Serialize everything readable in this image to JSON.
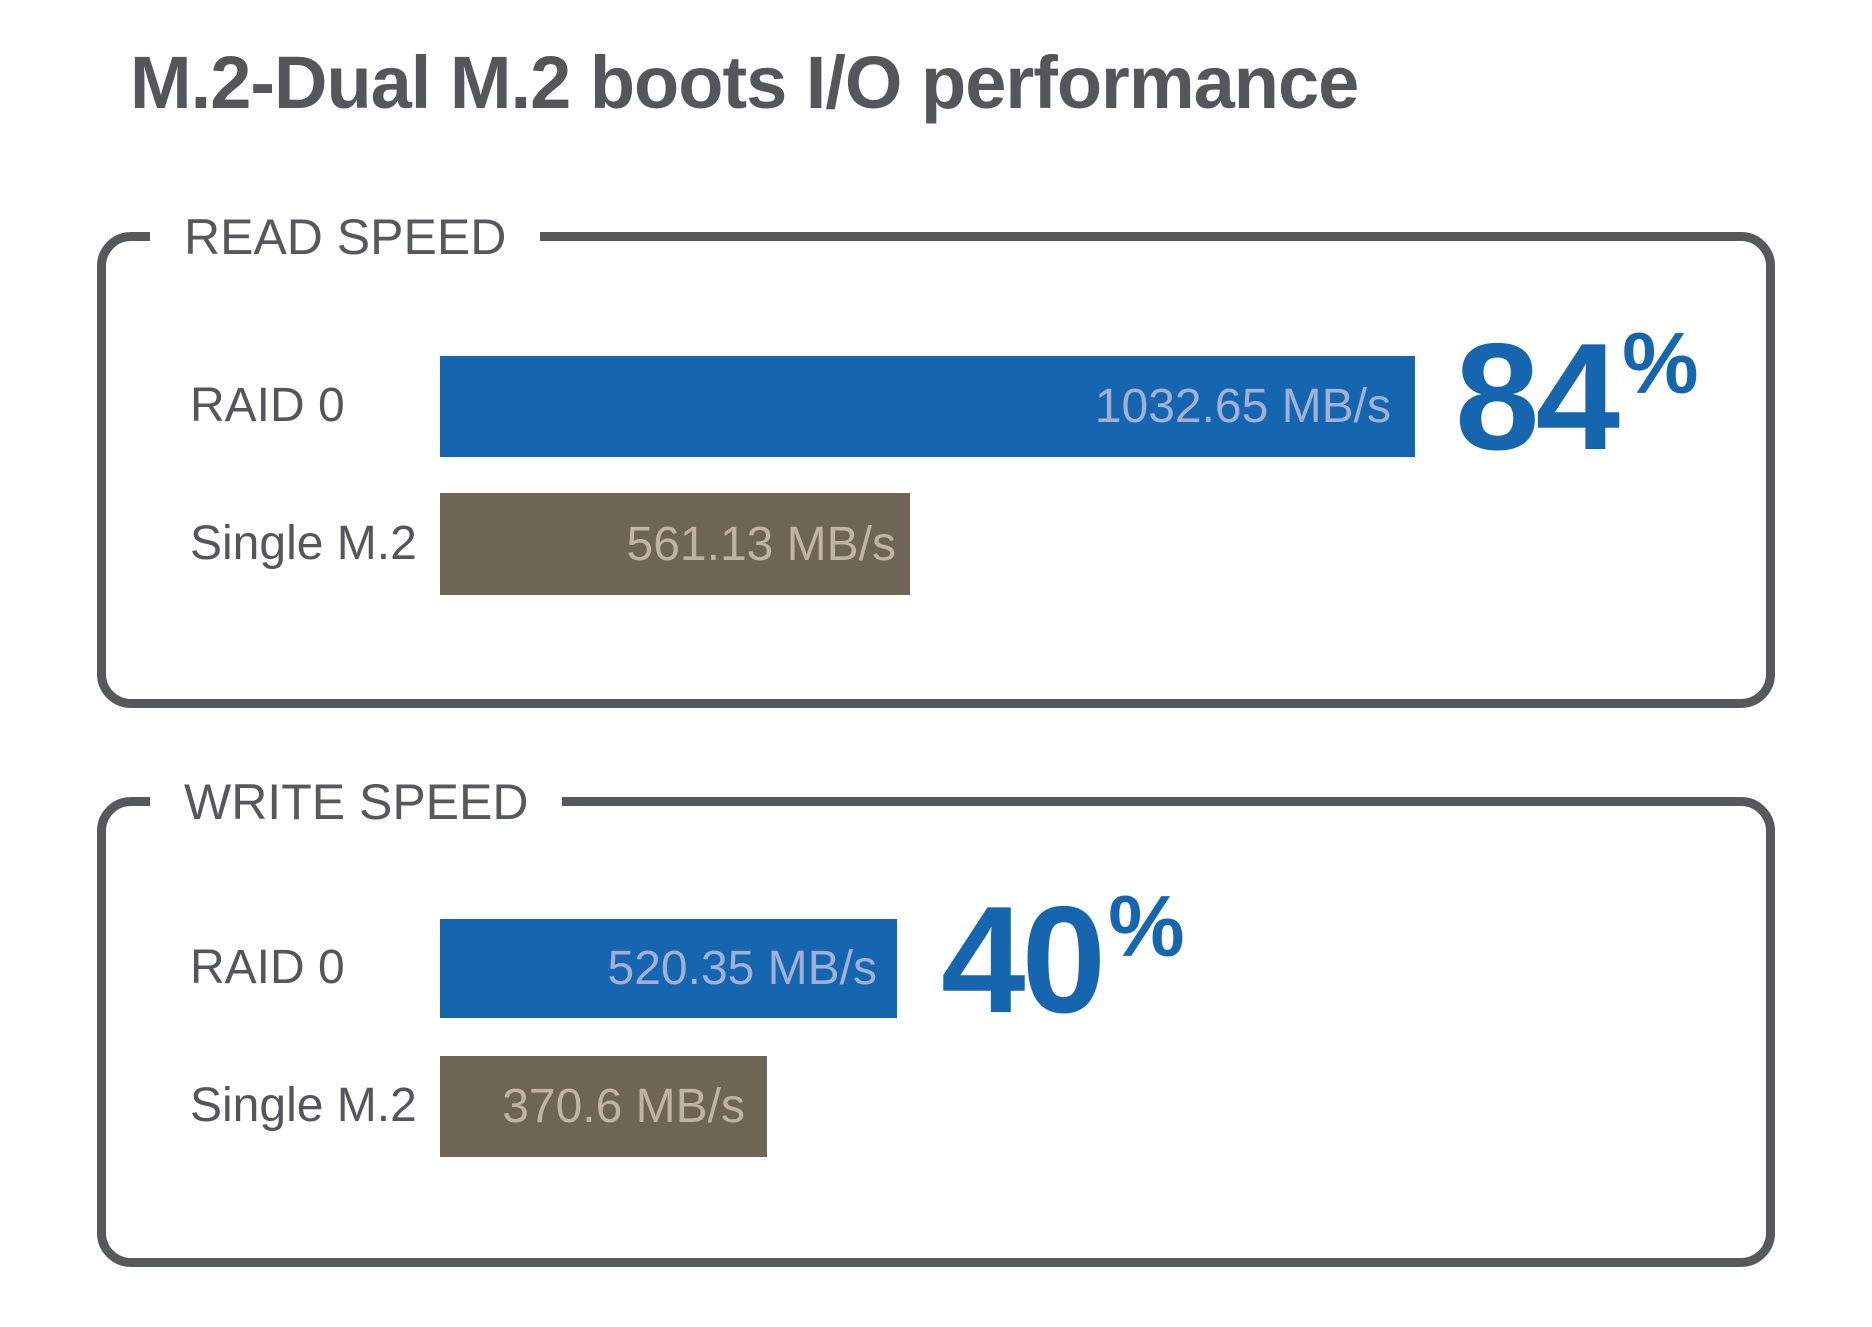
{
  "title": "M.2-Dual M.2 boots I/O performance",
  "colors": {
    "bar_blue": "#1565af",
    "bar_brown": "#6f6557",
    "accent_number_blue": "#1565af",
    "value_text_on_blue": "#a1b0d8",
    "value_text_on_brown": "#bfb3a6",
    "frame_gray": "#57585a",
    "label_gray": "#555659"
  },
  "panels": [
    {
      "label": "READ SPEED",
      "rows": [
        {
          "category": "RAID 0",
          "value_label": "1032.65 MB/s",
          "value": 1032.65,
          "color": "blue"
        },
        {
          "category": "Single M.2",
          "value_label": "561.13 MB/s",
          "value": 561.13,
          "color": "brown"
        }
      ],
      "highlight": {
        "number": "84",
        "symbol": "%"
      }
    },
    {
      "label": "WRITE SPEED",
      "rows": [
        {
          "category": "RAID 0",
          "value_label": "520.35 MB/s",
          "value": 520.35,
          "color": "blue"
        },
        {
          "category": "Single M.2",
          "value_label": "370.6 MB/s",
          "value": 370.6,
          "color": "brown"
        }
      ],
      "highlight": {
        "number": "40",
        "symbol": "%"
      }
    }
  ],
  "chart_data": [
    {
      "type": "bar",
      "orientation": "horizontal",
      "title": "READ SPEED",
      "categories": [
        "RAID 0",
        "Single M.2"
      ],
      "values": [
        1032.65,
        561.13
      ],
      "unit": "MB/s",
      "data_labels": [
        "1032.65 MB/s",
        "561.13 MB/s"
      ],
      "annotation": "84%",
      "annotation_meaning": "RAID 0 read speed gain vs Single M.2",
      "legend": "none",
      "grid": false,
      "bar_colors": [
        "#1565af",
        "#6f6557"
      ]
    },
    {
      "type": "bar",
      "orientation": "horizontal",
      "title": "WRITE SPEED",
      "categories": [
        "RAID 0",
        "Single M.2"
      ],
      "values": [
        520.35,
        370.6
      ],
      "unit": "MB/s",
      "data_labels": [
        "520.35 MB/s",
        "370.6 MB/s"
      ],
      "annotation": "40%",
      "annotation_meaning": "RAID 0 write speed gain vs Single M.2",
      "legend": "none",
      "grid": false,
      "bar_colors": [
        "#1565af",
        "#6f6557"
      ]
    }
  ]
}
